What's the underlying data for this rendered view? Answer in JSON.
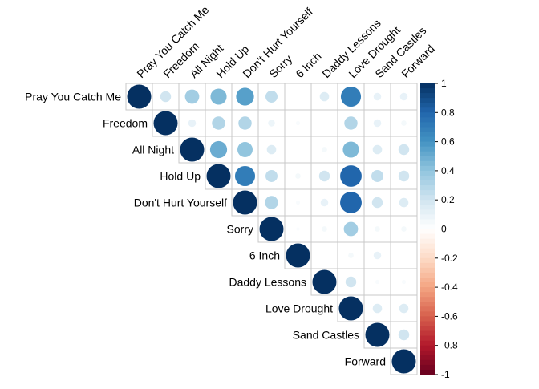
{
  "chart_data": {
    "type": "heatmap",
    "title": "",
    "layout": "upper-triangle",
    "glyph": "circle",
    "variables": [
      "Pray You Catch Me",
      "Freedom",
      "All Night",
      "Hold Up",
      "Don't Hurt Yourself",
      "Sorry",
      "6 Inch",
      "Daddy Lessons",
      "Love Drought",
      "Sand Castles",
      "Forward"
    ],
    "matrix": [
      [
        1.0,
        0.2,
        0.35,
        0.45,
        0.55,
        0.25,
        0.0,
        0.15,
        0.7,
        0.1,
        0.1
      ],
      [
        0.2,
        1.0,
        0.1,
        0.3,
        0.3,
        0.08,
        0.03,
        0.0,
        0.3,
        0.1,
        0.05
      ],
      [
        0.35,
        0.1,
        1.0,
        0.5,
        0.4,
        0.15,
        0.0,
        0.05,
        0.45,
        0.15,
        0.2
      ],
      [
        0.45,
        0.3,
        0.5,
        1.0,
        0.7,
        0.25,
        0.05,
        0.2,
        0.8,
        0.25,
        0.2
      ],
      [
        0.55,
        0.3,
        0.4,
        0.7,
        1.0,
        0.3,
        0.03,
        0.1,
        0.8,
        0.2,
        0.15
      ],
      [
        0.25,
        0.08,
        0.15,
        0.25,
        0.3,
        1.0,
        0.02,
        0.05,
        0.35,
        0.05,
        0.05
      ],
      [
        0.0,
        0.03,
        0.0,
        0.05,
        0.03,
        0.02,
        1.0,
        0.0,
        0.05,
        0.1,
        0.0
      ],
      [
        0.15,
        0.0,
        0.05,
        0.2,
        0.1,
        0.05,
        0.0,
        1.0,
        0.2,
        0.03,
        0.03
      ],
      [
        0.7,
        0.3,
        0.45,
        0.8,
        0.8,
        0.35,
        0.05,
        0.2,
        1.0,
        0.15,
        0.15
      ],
      [
        0.1,
        0.1,
        0.15,
        0.25,
        0.2,
        0.05,
        0.1,
        0.03,
        0.15,
        1.0,
        0.2
      ],
      [
        0.1,
        0.05,
        0.2,
        0.2,
        0.15,
        0.05,
        0.0,
        0.03,
        0.15,
        0.2,
        1.0
      ]
    ],
    "color_scale": {
      "min": -1,
      "max": 1,
      "ticks": [
        "1",
        "0.8",
        "0.6",
        "0.4",
        "0.2",
        "0",
        "-0.2",
        "-0.4",
        "-0.6",
        "-0.8",
        "-1"
      ],
      "stops": [
        "#67001F",
        "#B2182B",
        "#D6604D",
        "#F4A582",
        "#FDDBC7",
        "#FFFFFF",
        "#D1E5F0",
        "#92C5DE",
        "#4393C3",
        "#2166AC",
        "#053061"
      ]
    },
    "grid": true,
    "legend_position": "right"
  }
}
